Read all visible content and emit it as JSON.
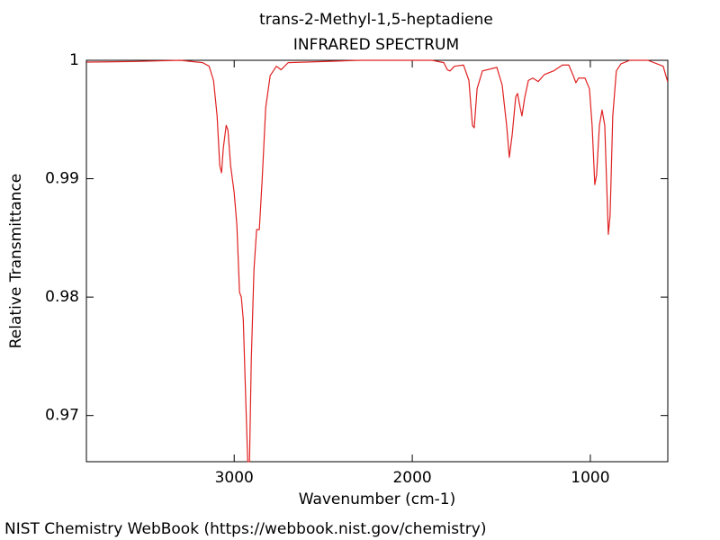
{
  "chart_data": {
    "type": "line",
    "title": "trans-2-Methyl-1,5-heptadiene",
    "subtitle": "INFRARED SPECTRUM",
    "x_label": "Wavenumber (cm-1)",
    "y_label": "Relative Transmittance",
    "footer": "NIST Chemistry WebBook (https://webbook.nist.gov/chemistry)",
    "xlim": [
      3830,
      565
    ],
    "ylim": [
      0.9661,
      1.0
    ],
    "xticks": [
      3000,
      2000,
      1000
    ],
    "yticks": [
      1,
      0.99,
      0.98,
      0.97
    ],
    "color": "#e02020",
    "x": [
      3828,
      3556,
      3303,
      3177,
      3141,
      3116,
      3096,
      3081,
      3071,
      3061,
      3045,
      3035,
      3020,
      3000,
      2985,
      2970,
      2960,
      2949,
      2934,
      2924,
      2914,
      2904,
      2889,
      2874,
      2859,
      2843,
      2823,
      2798,
      2763,
      2737,
      2697,
      2293,
      1889,
      1823,
      1803,
      1788,
      1763,
      1712,
      1682,
      1662,
      1652,
      1636,
      1606,
      1525,
      1495,
      1470,
      1455,
      1439,
      1419,
      1409,
      1394,
      1384,
      1369,
      1348,
      1323,
      1293,
      1258,
      1207,
      1157,
      1121,
      1096,
      1081,
      1066,
      1030,
      1005,
      990,
      975,
      965,
      949,
      934,
      919,
      909,
      899,
      889,
      874,
      854,
      828,
      778,
      677,
      591,
      566
    ],
    "values": [
      0.99985,
      0.9999,
      1.0,
      0.9998,
      0.9995,
      0.9983,
      0.9953,
      0.9911,
      0.9905,
      0.9926,
      0.9945,
      0.9941,
      0.9911,
      0.9888,
      0.9861,
      0.9804,
      0.98,
      0.9781,
      0.9708,
      0.9661,
      0.9661,
      0.9747,
      0.9823,
      0.9857,
      0.9857,
      0.9899,
      0.996,
      0.9987,
      0.9995,
      0.9992,
      0.9998,
      1.0,
      1.0,
      0.9998,
      0.9992,
      0.9991,
      0.9995,
      0.9996,
      0.9983,
      0.9945,
      0.9943,
      0.9976,
      0.9991,
      0.9994,
      0.9979,
      0.9945,
      0.9918,
      0.9937,
      0.9969,
      0.9972,
      0.996,
      0.9953,
      0.9968,
      0.9983,
      0.9985,
      0.9982,
      0.9988,
      0.9991,
      0.9996,
      0.9996,
      0.9987,
      0.9981,
      0.9985,
      0.9985,
      0.9976,
      0.9945,
      0.9895,
      0.9903,
      0.9945,
      0.9958,
      0.9945,
      0.9899,
      0.9853,
      0.9869,
      0.9953,
      0.9991,
      0.9997,
      1.0,
      1.0,
      0.9995,
      0.9982
    ]
  }
}
